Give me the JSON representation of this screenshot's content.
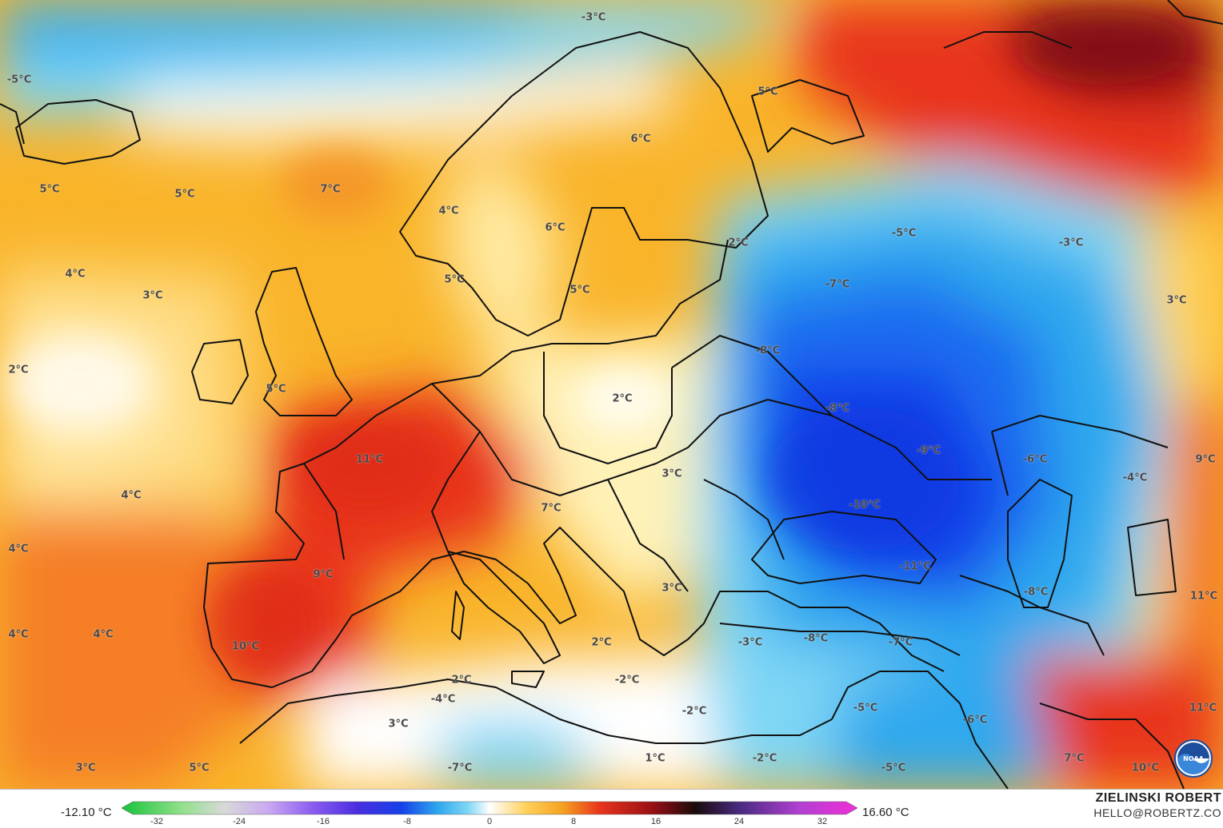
{
  "map": {
    "min_value": "-12.10 °C",
    "max_value": "16.60 °C",
    "colorbar_ticks": [
      "-32",
      "-24",
      "-16",
      "-8",
      "0",
      "8",
      "16",
      "24",
      "32"
    ],
    "credit_name": "ZIELINSKI ROBERT",
    "credit_email": "HELLO@ROBERTZ.CO",
    "logo_text": "NOAA",
    "colors": {
      "deep_red": "#e8341c",
      "orange": "#f5a020",
      "yellow": "#ffd15a",
      "pale": "#fff2b8",
      "white": "#ffffff",
      "light_blue": "#7ed6f5",
      "blue": "#2ea8ee",
      "deep_blue": "#1648e8"
    },
    "labels": [
      {
        "text": "-5°C"
      },
      {
        "text": "-3°C"
      },
      {
        "text": "5°C"
      },
      {
        "text": "6°C"
      },
      {
        "text": "5°C"
      },
      {
        "text": "5°C"
      },
      {
        "text": "7°C"
      },
      {
        "text": "4°C"
      },
      {
        "text": "6°C"
      },
      {
        "text": "2°C"
      },
      {
        "text": "-5°C"
      },
      {
        "text": "-3°C"
      },
      {
        "text": "4°C"
      },
      {
        "text": "3°C"
      },
      {
        "text": "5°C"
      },
      {
        "text": "5°C"
      },
      {
        "text": "-7°C"
      },
      {
        "text": "3°C"
      },
      {
        "text": "2°C"
      },
      {
        "text": "-8°C"
      },
      {
        "text": "5°C"
      },
      {
        "text": "2°C"
      },
      {
        "text": "-8°C"
      },
      {
        "text": "11°C"
      },
      {
        "text": "-9°C"
      },
      {
        "text": "-6°C"
      },
      {
        "text": "9°C"
      },
      {
        "text": "4°C"
      },
      {
        "text": "3°C"
      },
      {
        "text": "-4°C"
      },
      {
        "text": "7°C"
      },
      {
        "text": "-10°C"
      },
      {
        "text": "4°C"
      },
      {
        "text": "9°C"
      },
      {
        "text": "-11°C"
      },
      {
        "text": "3°C"
      },
      {
        "text": "-8°C"
      },
      {
        "text": "11°C"
      },
      {
        "text": "4°C"
      },
      {
        "text": "4°C"
      },
      {
        "text": "2°C"
      },
      {
        "text": "-3°C"
      },
      {
        "text": "-8°C"
      },
      {
        "text": "-7°C"
      },
      {
        "text": "10°C"
      },
      {
        "text": "-2°C"
      },
      {
        "text": "2°C"
      },
      {
        "text": "-4°C"
      },
      {
        "text": "-2°C"
      },
      {
        "text": "-5°C"
      },
      {
        "text": "11°C"
      },
      {
        "text": "3°C"
      },
      {
        "text": "-6°C"
      },
      {
        "text": "1°C"
      },
      {
        "text": "-2°C"
      },
      {
        "text": "3°C"
      },
      {
        "text": "5°C"
      },
      {
        "text": "-7°C"
      },
      {
        "text": "-5°C"
      },
      {
        "text": "7°C"
      },
      {
        "text": "10°C"
      }
    ]
  }
}
